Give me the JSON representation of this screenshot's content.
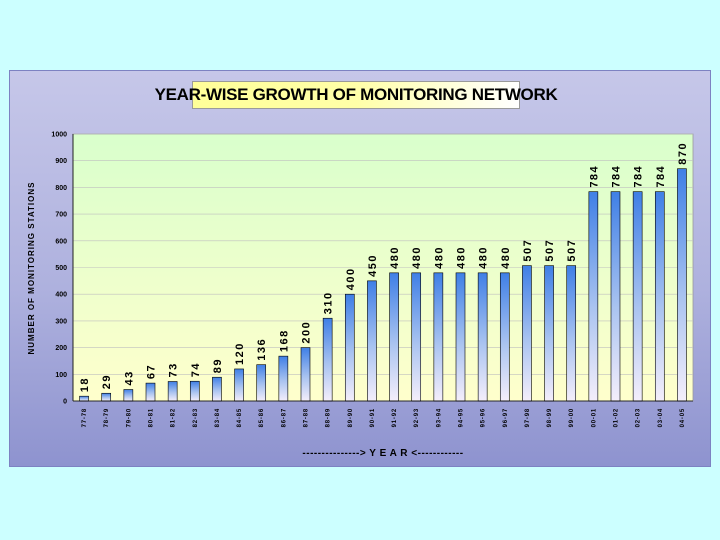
{
  "colors": {
    "background": "#ccffff",
    "panel": "#aeb1de",
    "plot_area_top": "#d9ffcc",
    "plot_area_bottom": "#ffffcc",
    "bar_top": "#3f7fe6",
    "bar_bottom": "#f4eefb"
  },
  "chart_data": {
    "type": "bar",
    "title": "YEAR-WISE GROWTH OF MONITORING NETWORK",
    "xlabel": "---------------> Y E A R <------------",
    "ylabel": "NUMBER OF MONITORING STATIONS",
    "ylim": [
      0,
      1000
    ],
    "yticks": [
      0,
      100,
      200,
      300,
      400,
      500,
      600,
      700,
      800,
      900,
      1000
    ],
    "grid": true,
    "legend": "none",
    "categories": [
      "77-78",
      "78-79",
      "79-80",
      "80-81",
      "81-82",
      "82-83",
      "83-84",
      "84-85",
      "85-86",
      "86-87",
      "87-88",
      "88-89",
      "89-90",
      "90-91",
      "91-92",
      "92-93",
      "93-94",
      "94-95",
      "95-96",
      "96-97",
      "97-98",
      "98-99",
      "99-00",
      "00-01",
      "01-02",
      "02-03",
      "03-04",
      "04-05"
    ],
    "values": [
      18,
      29,
      43,
      67,
      73,
      74,
      89,
      120,
      136,
      168,
      200,
      310,
      400,
      450,
      480,
      480,
      480,
      480,
      480,
      480,
      507,
      507,
      507,
      784,
      784,
      784,
      784,
      870
    ],
    "data_labels": [
      "18",
      "29",
      "43",
      "67",
      "73",
      "74",
      "89",
      "120",
      "136",
      "168",
      "200",
      "310",
      "400",
      "450",
      "480",
      "480",
      "480",
      "480",
      "480",
      "480",
      "507",
      "507",
      "507",
      "784",
      "784",
      "784",
      "784",
      "870"
    ]
  }
}
